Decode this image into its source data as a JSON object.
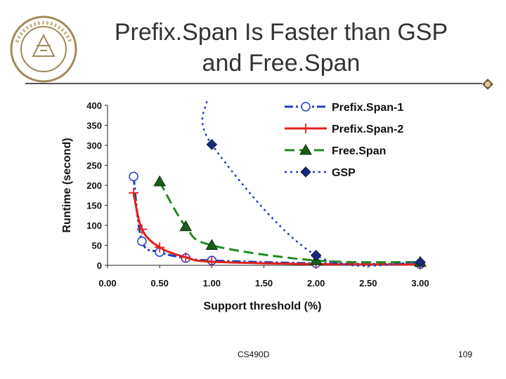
{
  "slide": {
    "title_line1": "Prefix.Span Is Faster than GSP",
    "title_line2": "and Free.Span",
    "footer_course": "CS490D",
    "footer_page": "109"
  },
  "colors": {
    "prefixspan1": "#1f3fbf",
    "prefixspan2": "#e0201c",
    "freespan": "#218a21",
    "gsp": "#1f3fbf",
    "text": "#333333"
  },
  "chart_data": {
    "type": "line",
    "title": "",
    "xlabel": "Support threshold (%)",
    "ylabel": "Runtime (second)",
    "xlim": [
      0,
      3
    ],
    "ylim": [
      0,
      400
    ],
    "xticks": [
      "0.00",
      "0.50",
      "1.00",
      "1.50",
      "2.00",
      "2.50",
      "3.00"
    ],
    "yticks": [
      "0",
      "50",
      "100",
      "150",
      "200",
      "250",
      "300",
      "350",
      "400"
    ],
    "legend_position": "top-right",
    "series": [
      {
        "name": "Prefix.Span-1",
        "style": "dash-dot",
        "marker": "circle",
        "x": [
          0.25,
          0.33,
          0.5,
          0.75,
          1.0,
          2.0,
          3.0
        ],
        "y": [
          222,
          60,
          33,
          18,
          12,
          5,
          3
        ]
      },
      {
        "name": "Prefix.Span-2",
        "style": "solid",
        "marker": "plus",
        "x": [
          0.25,
          0.33,
          0.5,
          0.75,
          1.0,
          2.0,
          3.0
        ],
        "y": [
          181,
          90,
          45,
          20,
          9,
          3,
          2
        ]
      },
      {
        "name": "Free.Span",
        "style": "dashed",
        "marker": "triangle",
        "x": [
          0.5,
          0.75,
          1.0,
          2.0,
          3.0
        ],
        "y": [
          209,
          97,
          50,
          12,
          8
        ]
      },
      {
        "name": "GSP",
        "style": "dotted",
        "marker": "diamond",
        "x": [
          0.95,
          1.0,
          2.0,
          3.0
        ],
        "y": [
          410,
          302,
          25,
          8
        ]
      }
    ]
  }
}
